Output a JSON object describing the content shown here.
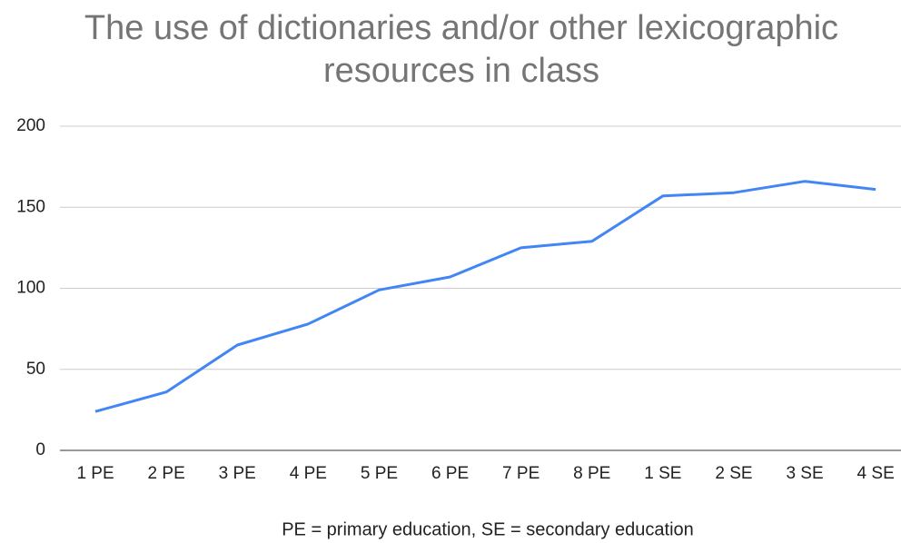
{
  "chart_data": {
    "type": "line",
    "title": "The use of dictionaries and/or other lexicographic resources in class",
    "x_label": "PE = primary education, SE = secondary education",
    "categories": [
      "1 PE",
      "2 PE",
      "3 PE",
      "4 PE",
      "5 PE",
      "6 PE",
      "7 PE",
      "8 PE",
      "1 SE",
      "2 SE",
      "3 SE",
      "4 SE"
    ],
    "series": [
      {
        "color": "#4285f4",
        "values": [
          24,
          36,
          65,
          78,
          99,
          107,
          125,
          129,
          157,
          159,
          166,
          161
        ]
      }
    ],
    "ylim": [
      0,
      200
    ],
    "yticks": [
      0,
      50,
      100,
      150,
      200
    ],
    "grid": true
  }
}
